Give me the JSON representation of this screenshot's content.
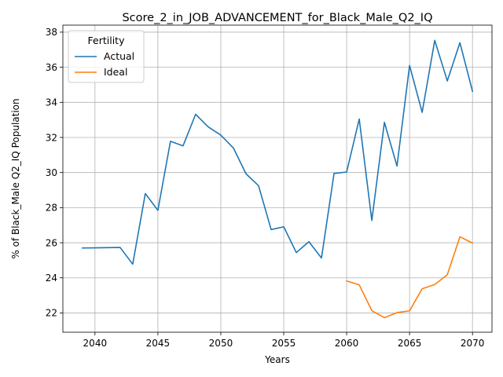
{
  "chart_data": {
    "type": "line",
    "title": "Score_2_in_JOB_ADVANCEMENT_for_Black_Male_Q2_IQ",
    "xlabel": "Years",
    "ylabel": "% of Black_Male Q2_IQ Population",
    "xlim": [
      2037.45,
      2071.55
    ],
    "ylim": [
      20.9,
      38.4
    ],
    "xticks": [
      2040,
      2045,
      2050,
      2055,
      2060,
      2065,
      2070
    ],
    "yticks": [
      22,
      24,
      26,
      28,
      30,
      32,
      34,
      36,
      38
    ],
    "grid": true,
    "legend": {
      "title": "Fertility",
      "placement": "top-left"
    },
    "series": [
      {
        "name": "Actual",
        "color": "#1f77b4",
        "x": [
          2039,
          2040,
          2041,
          2042,
          2043,
          2044,
          2045,
          2046,
          2047,
          2048,
          2049,
          2050,
          2051,
          2052,
          2053,
          2054,
          2055,
          2056,
          2057,
          2058,
          2059,
          2060,
          2061,
          2062,
          2063,
          2064,
          2065,
          2066,
          2067,
          2068,
          2069,
          2070
        ],
        "y": [
          25.7,
          25.71,
          25.72,
          25.73,
          24.78,
          28.8,
          27.85,
          31.78,
          31.52,
          33.32,
          32.6,
          32.13,
          31.4,
          29.93,
          29.25,
          26.75,
          26.91,
          25.44,
          26.06,
          25.13,
          29.95,
          30.03,
          33.05,
          27.27,
          32.86,
          30.37,
          36.1,
          33.43,
          37.53,
          35.22,
          37.4,
          34.63
        ]
      },
      {
        "name": "Ideal",
        "color": "#ff7f0e",
        "x": [
          2060,
          2061,
          2062,
          2063,
          2064,
          2065,
          2066,
          2067,
          2068,
          2069,
          2070
        ],
        "y": [
          23.82,
          23.6,
          22.13,
          21.73,
          22.02,
          22.12,
          23.38,
          23.62,
          24.18,
          26.34,
          25.98
        ]
      }
    ]
  }
}
